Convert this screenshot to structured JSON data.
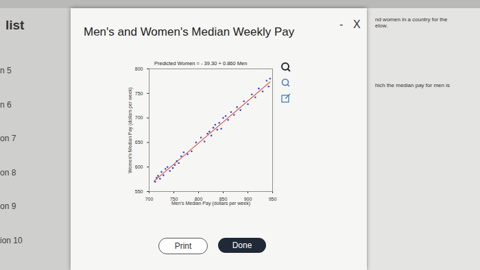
{
  "page": {
    "sidebar_title": "list",
    "sidebar_items": [
      "n 5",
      "n 6",
      "on 7",
      "on 8",
      "on 9",
      "ion 10"
    ],
    "dialog_title": "Men's and Women's Median Weekly Pay",
    "minimize": "-",
    "close": "X",
    "side_text": [
      "nd women in a country for the",
      "elow.",
      "hich the median pay for men is"
    ],
    "buttons": [
      "Print",
      "Done"
    ]
  },
  "chart_data": {
    "type": "scatter",
    "title": "Predicted Women = - 39.30 + 0.860 Men",
    "x_label": "Men's Median Pay (dollars per week)",
    "y_label": "Women's Median Pay (dollars per week)",
    "x": [
      712,
      715,
      718,
      722,
      725,
      729,
      733,
      737,
      742,
      748,
      752,
      756,
      760,
      765,
      770,
      778,
      786,
      795,
      805,
      812,
      818,
      822,
      826,
      830,
      834,
      838,
      842,
      846,
      850,
      855,
      860,
      866,
      872,
      878,
      885,
      892,
      900,
      908,
      915,
      922,
      930,
      938,
      942,
      945
    ],
    "values": [
      570,
      578,
      582,
      576,
      590,
      583,
      596,
      600,
      592,
      598,
      604,
      612,
      608,
      622,
      630,
      626,
      632,
      650,
      660,
      652,
      668,
      672,
      664,
      680,
      686,
      676,
      690,
      678,
      700,
      704,
      696,
      712,
      706,
      722,
      716,
      734,
      728,
      748,
      742,
      760,
      754,
      776,
      764,
      780
    ],
    "color": "#3b4fc4",
    "marker": "circle",
    "fit_line": {
      "x": [
        710,
        945
      ],
      "values": [
        571.3,
        773.4
      ],
      "color": "#e05a4e"
    },
    "xlim": [
      700,
      950
    ],
    "ylim": [
      550,
      800
    ],
    "xticks": [
      700,
      750,
      800,
      850,
      900,
      950
    ],
    "yticks": [
      550,
      600,
      650,
      700,
      750,
      800
    ],
    "grid": false
  }
}
